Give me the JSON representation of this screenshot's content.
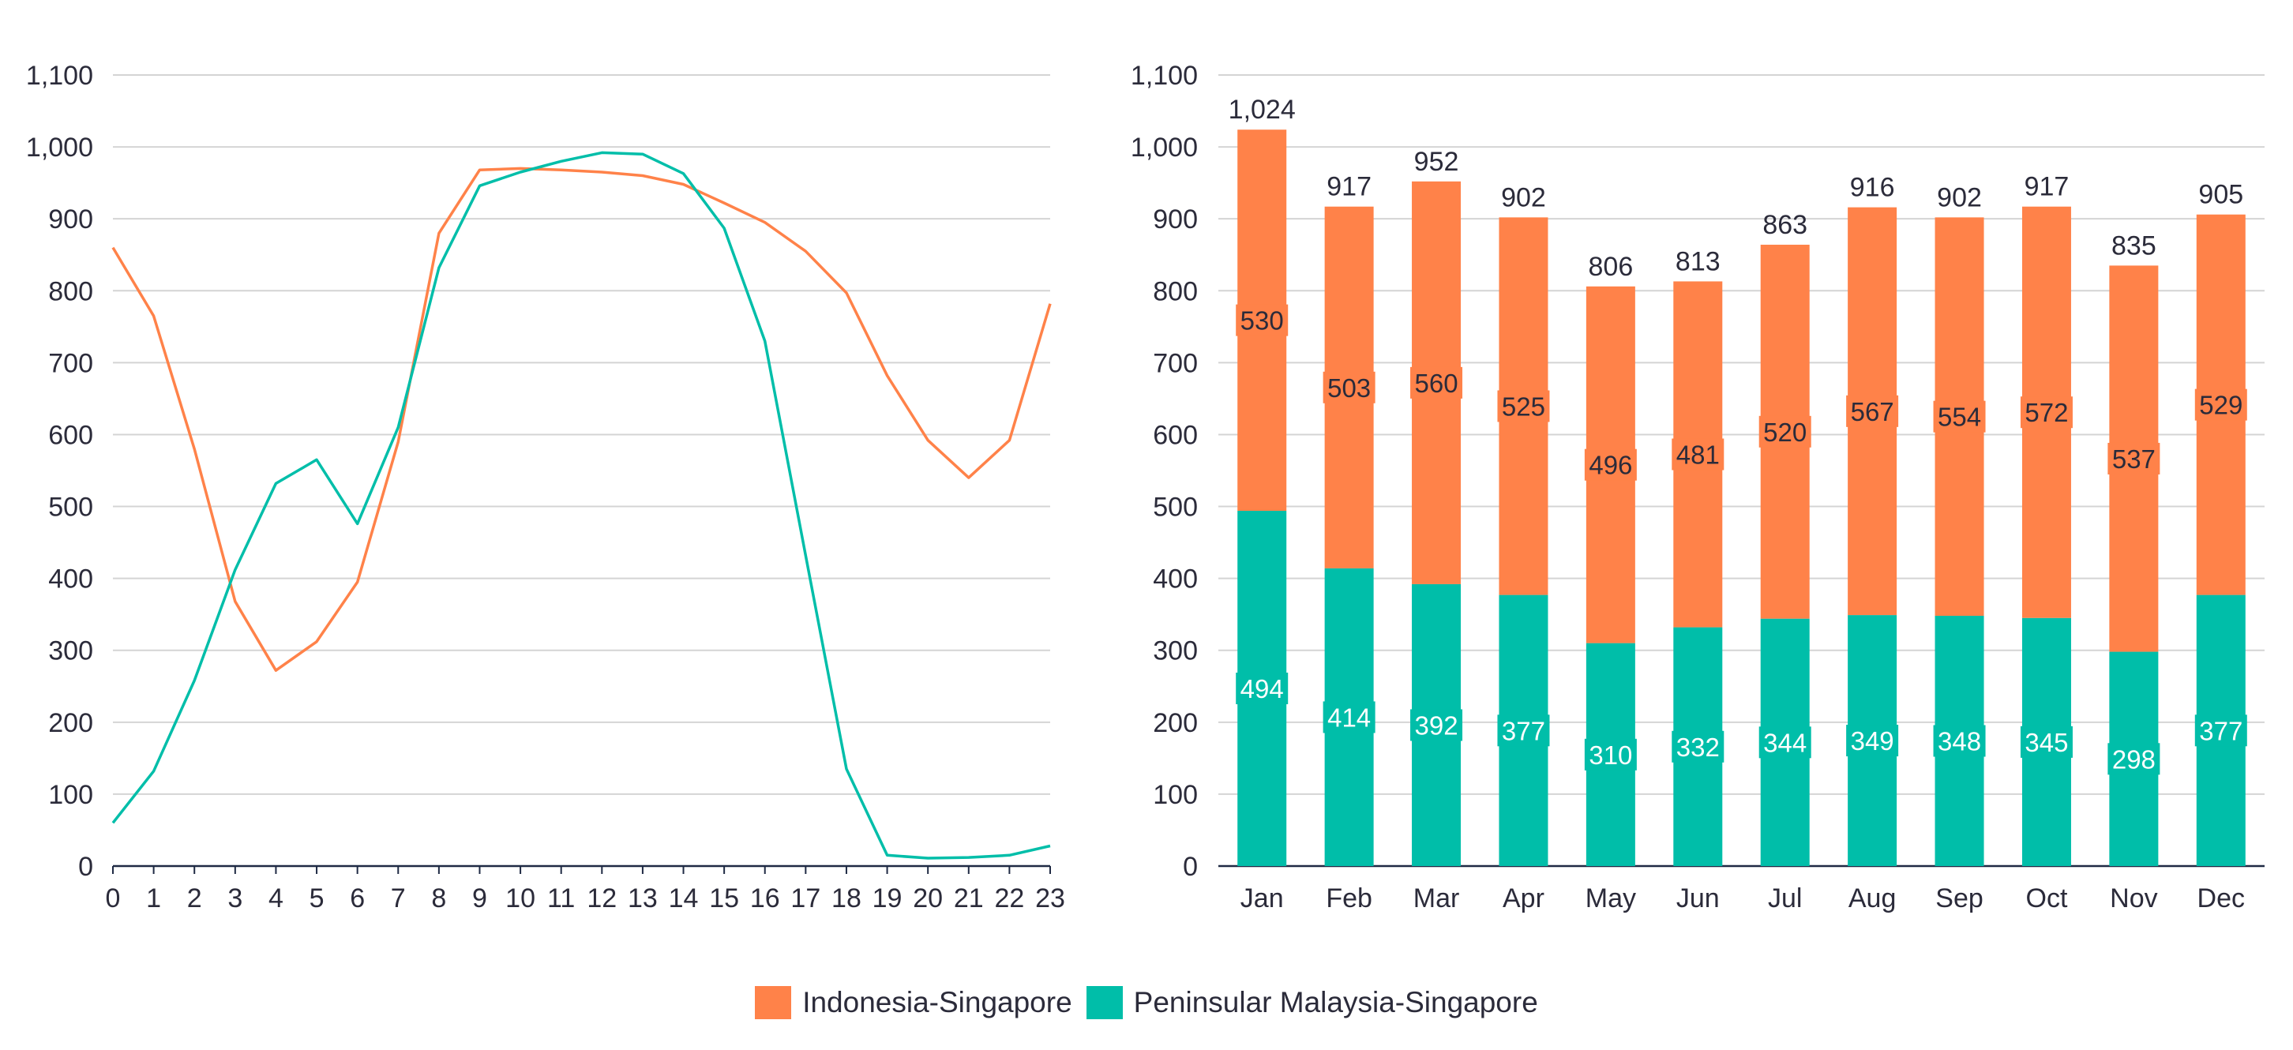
{
  "colors": {
    "indonesia": "#ff8249",
    "malaysia": "#00bea9",
    "grid": "#d4d4d4",
    "axis": "#1f2a44",
    "text": "#2b2b3a"
  },
  "legend": {
    "items": [
      {
        "key": "indonesia",
        "label": "Indonesia-Singapore"
      },
      {
        "key": "malaysia",
        "label": "Peninsular Malaysia-Singapore"
      }
    ]
  },
  "chart_data": [
    {
      "type": "line",
      "title": "",
      "xlabel": "",
      "ylabel": "",
      "x": [
        0,
        1,
        2,
        3,
        4,
        5,
        6,
        7,
        8,
        9,
        10,
        11,
        12,
        13,
        14,
        15,
        16,
        17,
        18,
        19,
        20,
        21,
        22,
        23
      ],
      "ylim": [
        0,
        1100
      ],
      "yticks": [
        0,
        100,
        200,
        300,
        400,
        500,
        600,
        700,
        800,
        900,
        1000,
        1100
      ],
      "ytick_labels": [
        "0",
        "100",
        "200",
        "300",
        "400",
        "500",
        "600",
        "700",
        "800",
        "900",
        "1,000",
        "1,100"
      ],
      "grid": true,
      "series": [
        {
          "name": "Indonesia-Singapore",
          "values": [
            860,
            765,
            580,
            368,
            272,
            312,
            395,
            590,
            880,
            968,
            970,
            968,
            965,
            960,
            948,
            922,
            895,
            855,
            797,
            682,
            592,
            540,
            592,
            782
          ]
        },
        {
          "name": "Peninsular Malaysia-Singapore",
          "values": [
            60,
            132,
            258,
            412,
            532,
            565,
            476,
            610,
            832,
            946,
            965,
            980,
            992,
            990,
            963,
            887,
            730,
            432,
            135,
            15,
            11,
            12,
            15,
            28
          ]
        }
      ]
    },
    {
      "type": "bar",
      "stacked": true,
      "title": "",
      "xlabel": "",
      "ylabel": "",
      "categories": [
        "Jan",
        "Feb",
        "Mar",
        "Apr",
        "May",
        "Jun",
        "Jul",
        "Aug",
        "Sep",
        "Oct",
        "Nov",
        "Dec"
      ],
      "ylim": [
        0,
        1100
      ],
      "yticks": [
        0,
        100,
        200,
        300,
        400,
        500,
        600,
        700,
        800,
        900,
        1000,
        1100
      ],
      "ytick_labels": [
        "0",
        "100",
        "200",
        "300",
        "400",
        "500",
        "600",
        "700",
        "800",
        "900",
        "1,000",
        "1,100"
      ],
      "grid": true,
      "series": [
        {
          "name": "Peninsular Malaysia-Singapore",
          "values": [
            494,
            414,
            392,
            377,
            310,
            332,
            344,
            349,
            348,
            345,
            298,
            377
          ]
        },
        {
          "name": "Indonesia-Singapore",
          "values": [
            530,
            503,
            560,
            525,
            496,
            481,
            520,
            567,
            554,
            572,
            537,
            529
          ]
        }
      ],
      "totals": [
        "1,024",
        "917",
        "952",
        "902",
        "806",
        "813",
        "863",
        "916",
        "902",
        "917",
        "835",
        "905"
      ]
    }
  ]
}
